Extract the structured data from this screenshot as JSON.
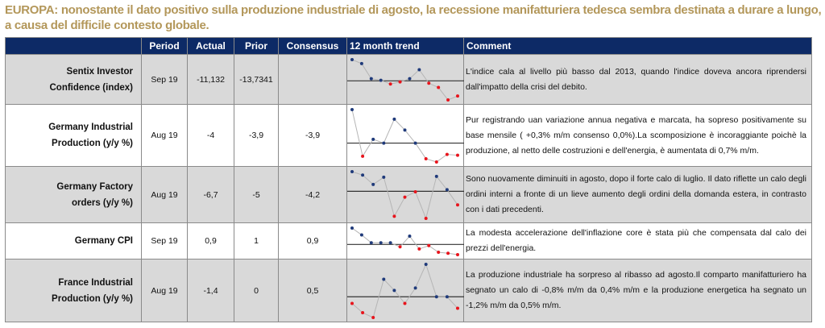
{
  "title": "EUROPA: nonostante il dato positivo sulla produzione industriale di agosto, la recessione manifatturiera tedesca sembra destinata a durare a lungo, a causa del difficile contesto globale.",
  "headers": [
    "",
    "Period",
    "Actual",
    "Prior",
    "Consensus",
    "12 month trend",
    "Comment"
  ],
  "colors": {
    "header_bg": "#0d2a66",
    "title": "#b3975a",
    "above": "#1f3a7a",
    "below": "#e8141c"
  },
  "rows": [
    {
      "label": "Sentix Investor Confidence (index)",
      "period": "Sep 19",
      "actual": "-11,132",
      "prior": "-13,7341",
      "consensus": "",
      "comment": "L'indice cala al livello più basso dal 2013, quando l'indice doveva ancora riprendersi dall'impatto della crisi del debito.",
      "trend": {
        "values": [
          162,
          147,
          90,
          84,
          70,
          78,
          90,
          124,
          73,
          57,
          10,
          25
        ],
        "baseline": 82
      }
    },
    {
      "label": "Germany Industrial Production (y/y %)",
      "period": "Aug 19",
      "actual": "-4",
      "prior": "-3,9",
      "consensus": "-3,9",
      "comment": "Pur registrando uan variazione annua negativa e marcata, ha sopreso positivamente su base mensile ( +0,3% m/m consenso 0,0%).La scomposizione è incoraggiante poichè la produzione, al netto delle costruzioni e dell'energia, è aumentata di 0,7% m/m.",
      "trend": {
        "values": [
          233,
          48,
          115,
          100,
          195,
          152,
          100,
          38,
          25,
          55,
          52
        ],
        "baseline": 100
      }
    },
    {
      "label": "Germany Factory orders (y/y %)",
      "period": "Aug 19",
      "actual": "-6,7",
      "prior": "-5",
      "consensus": "-4,2",
      "comment": "Sono nuovamente diminuiti in agosto, dopo il forte calo di luglio. Il dato riflette un calo degli ordini interni a fronte di un lieve aumento degli ordini della domanda estera, in contrasto con i dati precedenti.",
      "trend": {
        "values": [
          198,
          185,
          150,
          177,
          30,
          102,
          122,
          22,
          180,
          130,
          73
        ],
        "baseline": 124
      }
    },
    {
      "label": "Germany CPI",
      "period": "Sep 19",
      "actual": "0,9",
      "prior": "1",
      "consensus": "0,9",
      "comment": "La modesta accelerazione dell'inflazione core è stata più che compensata dal calo dei prezzi dell'energia.",
      "trend": {
        "values": [
          132,
          103,
          70,
          70,
          70,
          53,
          98,
          44,
          58,
          30,
          26,
          20
        ],
        "baseline": 63
      }
    },
    {
      "label": "France Industrial Production (y/y %)",
      "period": "Aug 19",
      "actual": "-1,4",
      "prior": "0",
      "consensus": "0,5",
      "comment": "La produzione industriale ha sorpreso al ribasso ad agosto.Il comparto manifatturiero ha segnato un calo di -0,8% m/m da 0,4% m/m e la produzione energetica ha segnato un -1,2% m/m da 0,5% m/m.",
      "trend": {
        "values": [
          65,
          30,
          12,
          156,
          114,
          65,
          123,
          212,
          90,
          90,
          47
        ],
        "baseline": 90
      }
    }
  ]
}
